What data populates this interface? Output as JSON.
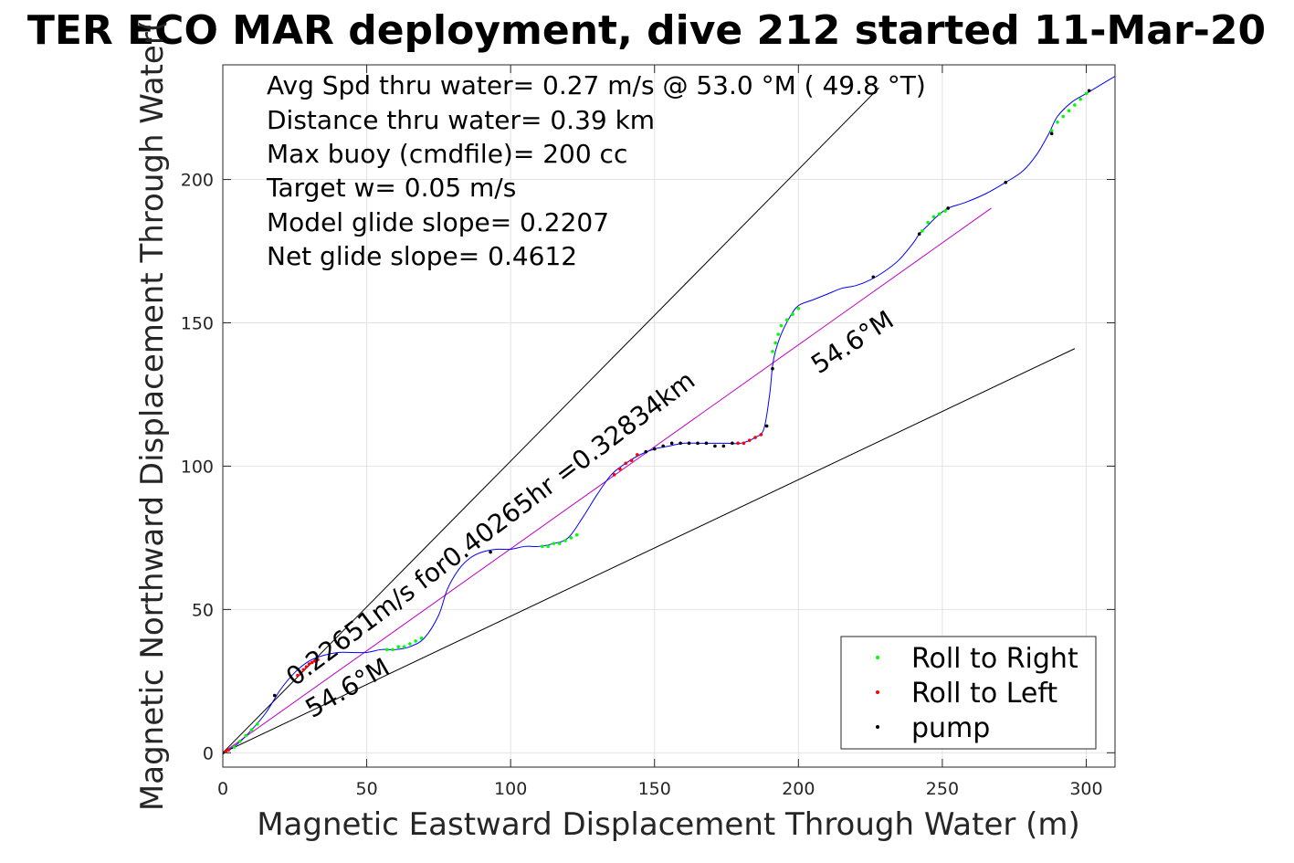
{
  "chart_data": {
    "type": "scatter",
    "title": "TER ECO MAR deployment, dive 212 started 11-Mar-20",
    "xlabel": "Magnetic Eastward Displacement Through Water (m)",
    "ylabel": "Magnetic Northward Displacement Through Water(",
    "xlim": [
      0,
      310
    ],
    "ylim": [
      -5,
      240
    ],
    "xticks": [
      0,
      50,
      100,
      150,
      200,
      250,
      300
    ],
    "yticks": [
      0,
      50,
      100,
      150,
      200
    ],
    "grid": true,
    "info_lines": [
      "Avg Spd thru water=  0.27 m/s @  53.0 °M ( 49.8 °T)",
      "Distance thru water=  0.39 km",
      "Max buoy (cmdfile)= 200 cc",
      "Target w= 0.05 m/s",
      "Model glide slope= 0.2207",
      "Net glide slope= 0.4612"
    ],
    "annotations": [
      {
        "text": "0.22651m/s for0.40265hr =0.32834km",
        "x": 25,
        "y": 23,
        "angle_deg": 37
      },
      {
        "text": "54.6°M",
        "x": 31,
        "y": 12,
        "angle_deg": 30
      },
      {
        "text": "54.6°M",
        "x": 207,
        "y": 132,
        "angle_deg": 33
      }
    ],
    "reference_lines": [
      {
        "name": "upper-bound",
        "x": [
          0,
          228
        ],
        "y": [
          0,
          232
        ],
        "color": "#000000"
      },
      {
        "name": "lower-bound",
        "x": [
          0,
          296
        ],
        "y": [
          0,
          141
        ],
        "color": "#000000"
      },
      {
        "name": "net-track",
        "x": [
          0,
          267
        ],
        "y": [
          0,
          190
        ],
        "color": "#c000c0"
      }
    ],
    "track": {
      "color": "#0000ff",
      "x": [
        0,
        5,
        10,
        15,
        20,
        25,
        30,
        35,
        40,
        45,
        50,
        55,
        60,
        65,
        70,
        75,
        78,
        82,
        86,
        90,
        95,
        100,
        105,
        110,
        115,
        120,
        125,
        130,
        135,
        140,
        145,
        150,
        155,
        160,
        165,
        170,
        175,
        180,
        185,
        188,
        190,
        191,
        192,
        194,
        197,
        200,
        205,
        210,
        215,
        220,
        225,
        230,
        235,
        240,
        242,
        245,
        248,
        252,
        258,
        265,
        272,
        278,
        283,
        287,
        290,
        295,
        300,
        305,
        310
      ],
      "y": [
        0,
        3,
        8,
        14,
        22,
        28,
        32,
        34,
        35,
        35,
        35,
        36,
        36,
        37,
        40,
        48,
        57,
        64,
        68,
        70,
        71,
        71,
        72,
        72,
        73,
        75,
        82,
        90,
        97,
        101,
        104,
        106,
        107,
        108,
        108,
        108,
        108,
        108,
        110,
        113,
        125,
        135,
        140,
        146,
        152,
        156,
        158,
        160,
        162,
        163,
        165,
        168,
        172,
        178,
        181,
        184,
        187,
        190,
        192,
        195,
        199,
        203,
        209,
        216,
        222,
        227,
        230,
        233,
        236
      ]
    },
    "series": [
      {
        "name": "Roll to Right",
        "color": "#00ff00",
        "x": [
          4,
          6,
          8,
          10,
          12,
          57,
          59,
          61,
          63,
          65,
          67,
          69,
          111,
          113,
          115,
          117,
          119,
          121,
          123,
          191,
          192,
          193,
          194,
          196,
          198,
          200,
          243,
          245,
          247,
          249,
          251,
          288,
          290,
          292,
          294,
          296,
          298,
          300
        ],
        "y": [
          2,
          4,
          6,
          8,
          10,
          36,
          36,
          37,
          37,
          38,
          39,
          40,
          72,
          72,
          73,
          73,
          74,
          75,
          76,
          140,
          143,
          146,
          149,
          151,
          153,
          155,
          182,
          185,
          187,
          188,
          189,
          217,
          220,
          222,
          224,
          226,
          228,
          230
        ]
      },
      {
        "name": "Roll to Left",
        "color": "#ff0000",
        "x": [
          0,
          1,
          2,
          26,
          27,
          28,
          29,
          30,
          31,
          32,
          33,
          136,
          138,
          140,
          142,
          144,
          179,
          181,
          183,
          185,
          187
        ],
        "y": [
          0,
          0.5,
          1,
          27,
          28,
          29,
          30,
          31,
          31.5,
          32,
          32.5,
          97,
          99,
          101,
          102,
          104,
          108,
          108,
          109,
          110,
          111
        ],
        "marker": "dot"
      },
      {
        "name": "pump",
        "color": "#000000",
        "x": [
          0,
          18,
          93,
          147,
          150,
          153,
          156,
          159,
          162,
          165,
          168,
          171,
          174,
          177,
          189,
          191,
          226,
          242,
          252,
          272,
          288,
          301
        ],
        "y": [
          0,
          20,
          70,
          105,
          106,
          107,
          108,
          108,
          108,
          108,
          108,
          107,
          107,
          108,
          114,
          134,
          166,
          181,
          190,
          199,
          216,
          231
        ]
      }
    ],
    "legend": {
      "placement": "bottom-right",
      "entries": [
        "Roll to Right",
        "Roll to Left",
        "pump"
      ]
    }
  }
}
